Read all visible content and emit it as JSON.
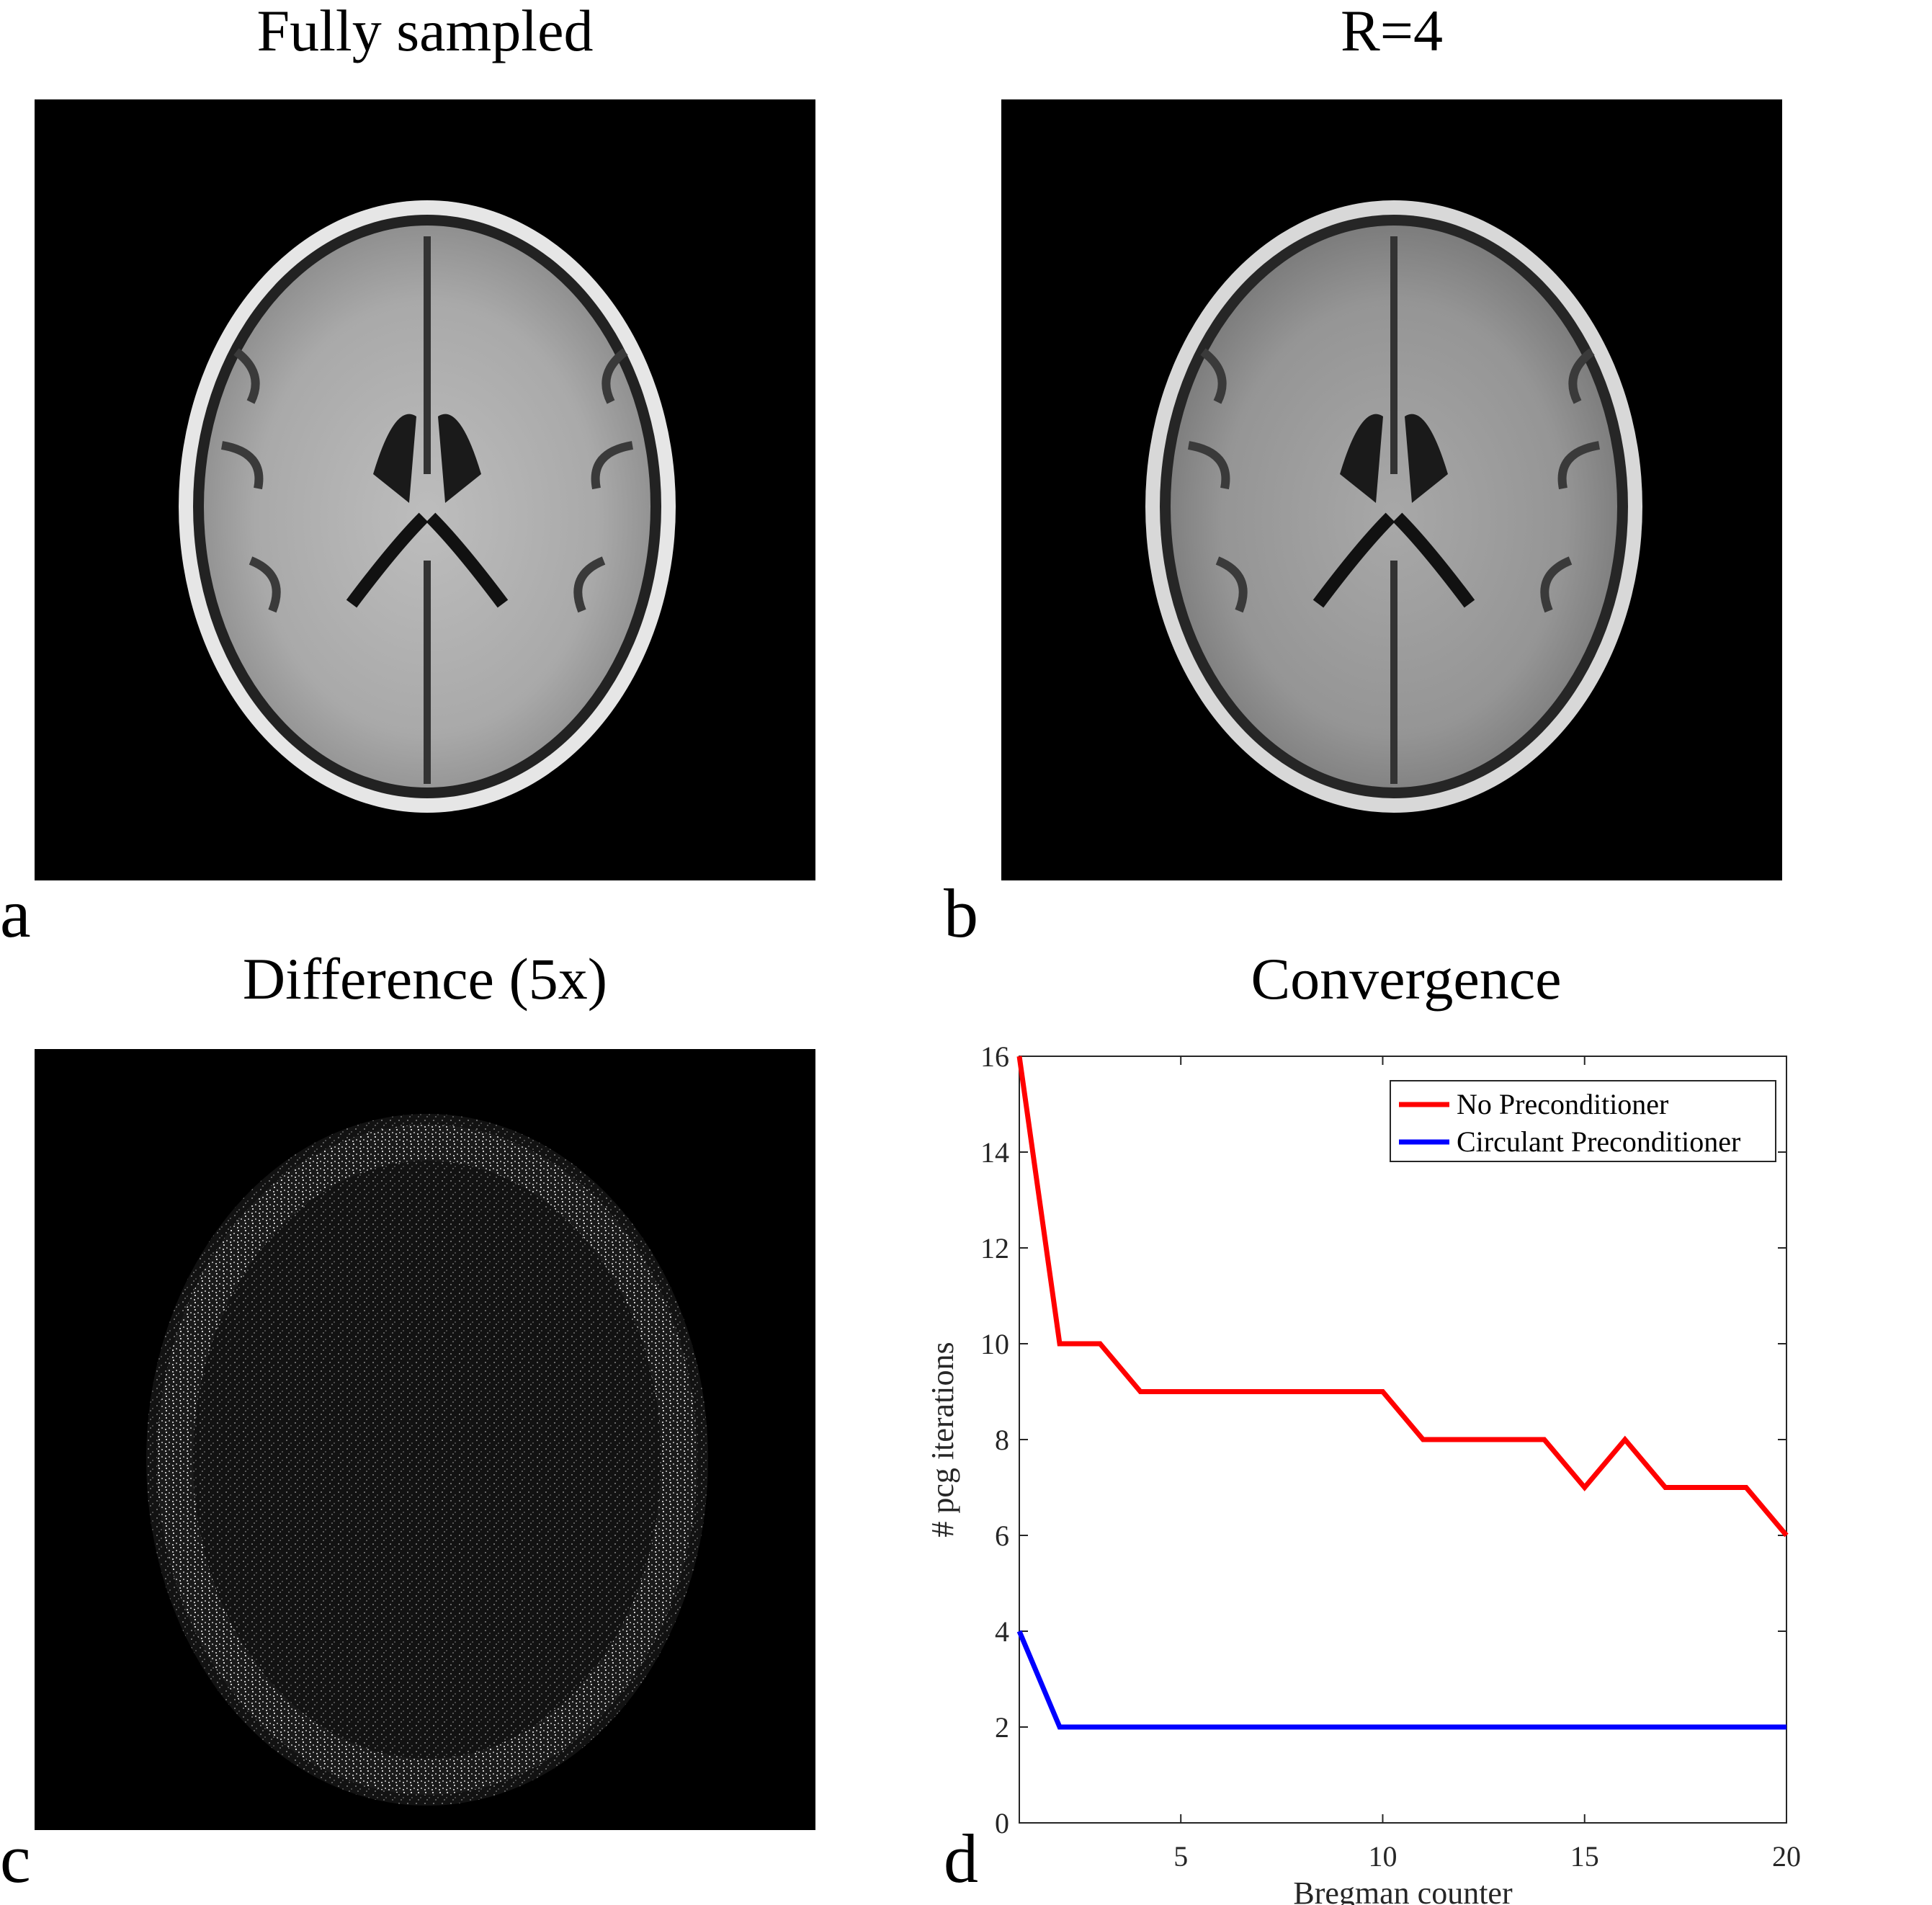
{
  "panels": {
    "a": {
      "title": "Fully sampled",
      "letter": "a"
    },
    "b": {
      "title": "R=4",
      "letter": "b"
    },
    "c": {
      "title": "Difference (5x)",
      "letter": "c"
    },
    "d": {
      "title": "Convergence",
      "letter": "d"
    }
  },
  "chart_data": {
    "type": "line",
    "title": "Convergence",
    "xlabel": "Bregman counter",
    "ylabel": "# pcg iterations",
    "xlim": [
      1,
      20
    ],
    "ylim": [
      0,
      16
    ],
    "xticks": [
      5,
      10,
      15,
      20
    ],
    "yticks": [
      0,
      2,
      4,
      6,
      8,
      10,
      12,
      14,
      16
    ],
    "legend_position": "top-right",
    "grid": false,
    "x": [
      1,
      2,
      3,
      4,
      5,
      6,
      7,
      8,
      9,
      10,
      11,
      12,
      13,
      14,
      15,
      16,
      17,
      18,
      19,
      20
    ],
    "series": [
      {
        "name": "No Preconditioner",
        "color": "#ff0000",
        "values": [
          16,
          10,
          10,
          9,
          9,
          9,
          9,
          9,
          9,
          9,
          8,
          8,
          8,
          8,
          7,
          8,
          7,
          7,
          7,
          6
        ]
      },
      {
        "name": "Circulant Preconditioner",
        "color": "#0000ff",
        "values": [
          4,
          2,
          2,
          2,
          2,
          2,
          2,
          2,
          2,
          2,
          2,
          2,
          2,
          2,
          2,
          2,
          2,
          2,
          2,
          2
        ]
      }
    ]
  }
}
